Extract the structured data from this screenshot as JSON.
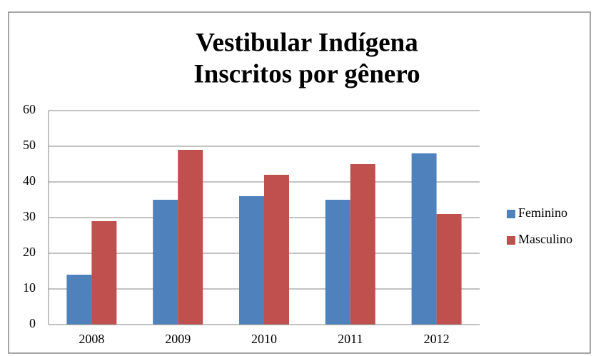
{
  "chart_data": {
    "type": "bar",
    "title": [
      "Vestibular Indígena",
      "Inscritos por gênero"
    ],
    "categories": [
      "2008",
      "2009",
      "2010",
      "2011",
      "2012"
    ],
    "series": [
      {
        "name": "Feminino",
        "color": "#4f81bd",
        "values": [
          14,
          35,
          36,
          35,
          48
        ]
      },
      {
        "name": "Masculino",
        "color": "#c0504d",
        "values": [
          29,
          49,
          42,
          45,
          31
        ]
      }
    ],
    "ylim": [
      0,
      60
    ],
    "yticks": [
      0,
      10,
      20,
      30,
      40,
      50,
      60
    ],
    "grid": true,
    "legend": "right"
  }
}
